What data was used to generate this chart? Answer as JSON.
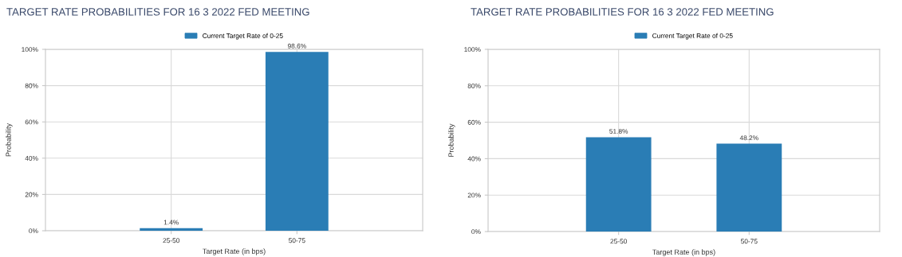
{
  "chart_data": [
    {
      "type": "bar",
      "title": "TARGET RATE PROBABILITIES FOR 16 3 2022 FED MEETING",
      "xlabel": "Target Rate (in bps)",
      "ylabel": "Probability",
      "categories": [
        "25-50",
        "50-75"
      ],
      "series": [
        {
          "color": "#2a7db5",
          "values": [
            1.4,
            98.6
          ],
          "value_labels": [
            "1.4%",
            "98.6%"
          ]
        },
        {
          "name": "Current Target Rate of 0-25",
          "color": "#2a7db5",
          "values": [
            null,
            null
          ]
        }
      ],
      "ylim": [
        0,
        100
      ],
      "yticks": [
        {
          "value": 0,
          "label": "0%"
        },
        {
          "value": 20,
          "label": "20%"
        },
        {
          "value": 40,
          "label": "40%"
        },
        {
          "value": 60,
          "label": "60%"
        },
        {
          "value": 80,
          "label": "80%"
        },
        {
          "value": 100,
          "label": "100%"
        }
      ],
      "grid": true,
      "legend": "top"
    },
    {
      "type": "bar",
      "title": "TARGET RATE PROBABILITIES FOR 16 3 2022 FED MEETING",
      "xlabel": "Target Rate (in bps)",
      "ylabel": "Probability",
      "categories": [
        "25-50",
        "50-75"
      ],
      "series": [
        {
          "color": "#2a7db5",
          "values": [
            51.8,
            48.2
          ],
          "value_labels": [
            "51.8%",
            "48.2%"
          ]
        },
        {
          "name": "Current Target Rate of 0-25",
          "color": "#2a7db5",
          "values": [
            null,
            null
          ]
        }
      ],
      "ylim": [
        0,
        100
      ],
      "yticks": [
        {
          "value": 0,
          "label": "0%"
        },
        {
          "value": 20,
          "label": "20%"
        },
        {
          "value": 40,
          "label": "40%"
        },
        {
          "value": 60,
          "label": "60%"
        },
        {
          "value": 80,
          "label": "80%"
        },
        {
          "value": 100,
          "label": "100%"
        }
      ],
      "grid": true,
      "legend": "top"
    }
  ]
}
